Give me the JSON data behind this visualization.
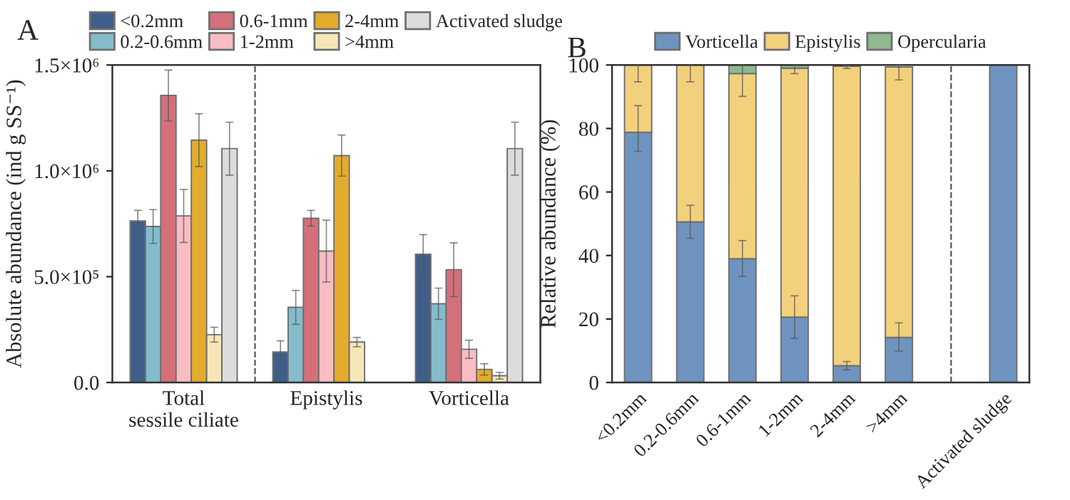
{
  "chart_data": [
    {
      "type": "bar",
      "title": "A",
      "ylabel": "Absolute abundance (ind g SS⁻¹)",
      "categories": [
        "Total\nsessile ciliate",
        "Epistylis",
        "Vorticella"
      ],
      "ylim": [
        0,
        1500000
      ],
      "yticks": [
        {
          "value": 0,
          "label": "0.0"
        },
        {
          "value": 500000,
          "label": "5.0×10⁵"
        },
        {
          "value": 1000000,
          "label": "1.0×10⁶"
        },
        {
          "value": 1500000,
          "label": "1.5×10⁶"
        }
      ],
      "legend": "top",
      "series": [
        {
          "name": "<0.2mm",
          "color": "#3f5f8a",
          "values": [
            763000,
            144000,
            606000
          ],
          "errors": [
            50000,
            53000,
            93000
          ]
        },
        {
          "name": "0.2-0.6mm",
          "color": "#84bccc",
          "values": [
            737000,
            355000,
            372000
          ],
          "errors": [
            80000,
            80000,
            74000
          ]
        },
        {
          "name": "0.6-1mm",
          "color": "#d4707a",
          "values": [
            1356000,
            776000,
            533000
          ],
          "errors": [
            120000,
            37000,
            127000
          ]
        },
        {
          "name": "1-2mm",
          "color": "#f9bcc3",
          "values": [
            787000,
            621000,
            157000
          ],
          "errors": [
            125000,
            146000,
            43000
          ]
        },
        {
          "name": "2-4mm",
          "color": "#e3ac2c",
          "values": [
            1145000,
            1072000,
            62000
          ],
          "errors": [
            125000,
            97000,
            27000
          ]
        },
        {
          "name": ">4mm",
          "color": "#f7e6b8",
          "values": [
            226000,
            191000,
            32000
          ],
          "errors": [
            35000,
            22000,
            16000
          ]
        },
        {
          "name": "Activated sludge",
          "color": "#dcdcdc",
          "values": [
            1105000,
            null,
            1105000
          ],
          "errors": [
            125000,
            null,
            125000
          ]
        }
      ]
    },
    {
      "type": "bar",
      "title": "B",
      "ylabel": "Relative abundance (%)",
      "stacked": true,
      "categories": [
        "<0.2mm",
        "0.2-0.6mm",
        "0.6-1mm",
        "1-2mm",
        "2-4mm",
        ">4mm",
        null,
        "Activated sludge"
      ],
      "ylim": [
        0,
        100
      ],
      "yticks": [
        0,
        20,
        40,
        60,
        80,
        100
      ],
      "legend": "top",
      "series": [
        {
          "name": "Vorticella",
          "color": "#6f93bf",
          "values": [
            78.8,
            50.6,
            39.0,
            20.6,
            5.3,
            14.2,
            null,
            100
          ],
          "errors": [
            [
              72.8,
              87.2
            ],
            [
              45.4,
              55.8
            ],
            [
              33.4,
              44.7
            ],
            [
              13.9,
              27.3
            ],
            [
              4.0,
              6.6
            ],
            [
              9.9,
              18.8
            ],
            null,
            null
          ]
        },
        {
          "name": "Epistylis",
          "color": "#f2d07c",
          "values": [
            21.2,
            49.4,
            58.3,
            78.4,
            94.3,
            85.2,
            null,
            0
          ],
          "errors": [
            [
              94.7,
              100
            ],
            [
              94.7,
              100
            ],
            [
              90.1,
              100
            ],
            [
              97.3,
              100
            ],
            [
              98.9,
              100
            ],
            [
              95.3,
              100
            ],
            null,
            null
          ]
        },
        {
          "name": "Opercularia",
          "color": "#8fb98f",
          "values": [
            0,
            0,
            2.7,
            1.0,
            null,
            null,
            null,
            0
          ]
        }
      ]
    }
  ]
}
